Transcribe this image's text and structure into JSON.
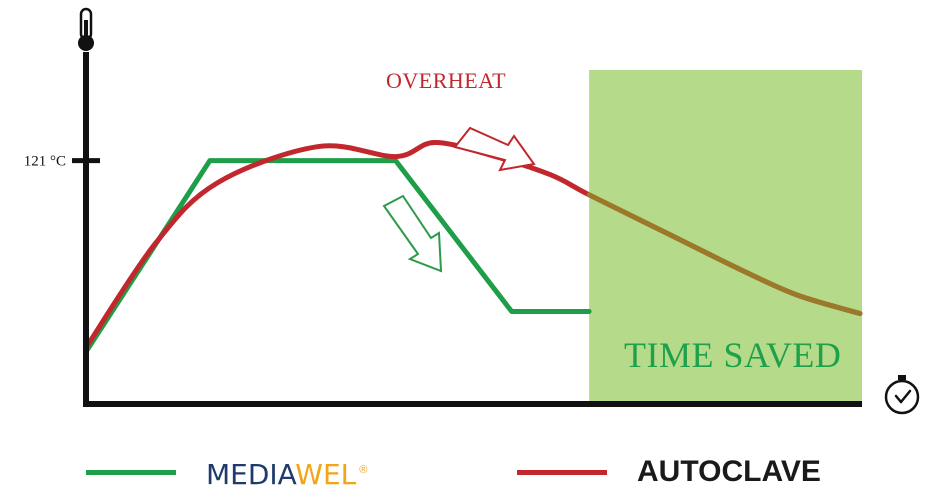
{
  "chart_data": {
    "type": "line",
    "title": "",
    "xlabel": "",
    "ylabel": "",
    "x_axis_icon": "clock-icon",
    "y_axis_icon": "thermometer-icon",
    "xlim": [
      0,
      100
    ],
    "ylim": [
      0,
      175
    ],
    "y_ticks": [
      {
        "value": 121,
        "label": "121 °C"
      }
    ],
    "grid": false,
    "legend_position": "bottom",
    "series": [
      {
        "name": "MEDIAWEL",
        "color": "#1e9e48",
        "x": [
          0,
          16,
          40,
          55,
          65
        ],
        "y": [
          26,
          121,
          121,
          46,
          46
        ]
      },
      {
        "name": "AUTOCLAVE",
        "color": "#c1272d",
        "x": [
          0,
          9,
          17,
          30,
          40,
          45,
          52,
          60,
          65,
          75,
          85,
          92,
          100
        ],
        "y": [
          28,
          80,
          110,
          128,
          123,
          130,
          124,
          114,
          104,
          85,
          66,
          54,
          45
        ]
      }
    ],
    "shaded_region": {
      "x": [
        65,
        100
      ],
      "color": "#b5db8a",
      "label": "TIME SAVED"
    },
    "annotations": [
      {
        "text": "OVERHEAT",
        "color": "#c1272d"
      },
      {
        "text": "TIME SAVED",
        "color": "#1fa04a"
      }
    ]
  },
  "legend": {
    "mediawel": {
      "part1": "MEDIA",
      "part2": "WEL",
      "registered": "®",
      "color": "#1e9e48"
    },
    "autoclave": {
      "label": "AUTOCLAVE",
      "color": "#c1272d"
    }
  },
  "colors": {
    "axis": "#111111",
    "brand_blue": "#1f3a6d",
    "brand_orange": "#f2a516",
    "overlap_line": "#9a7a2a"
  }
}
